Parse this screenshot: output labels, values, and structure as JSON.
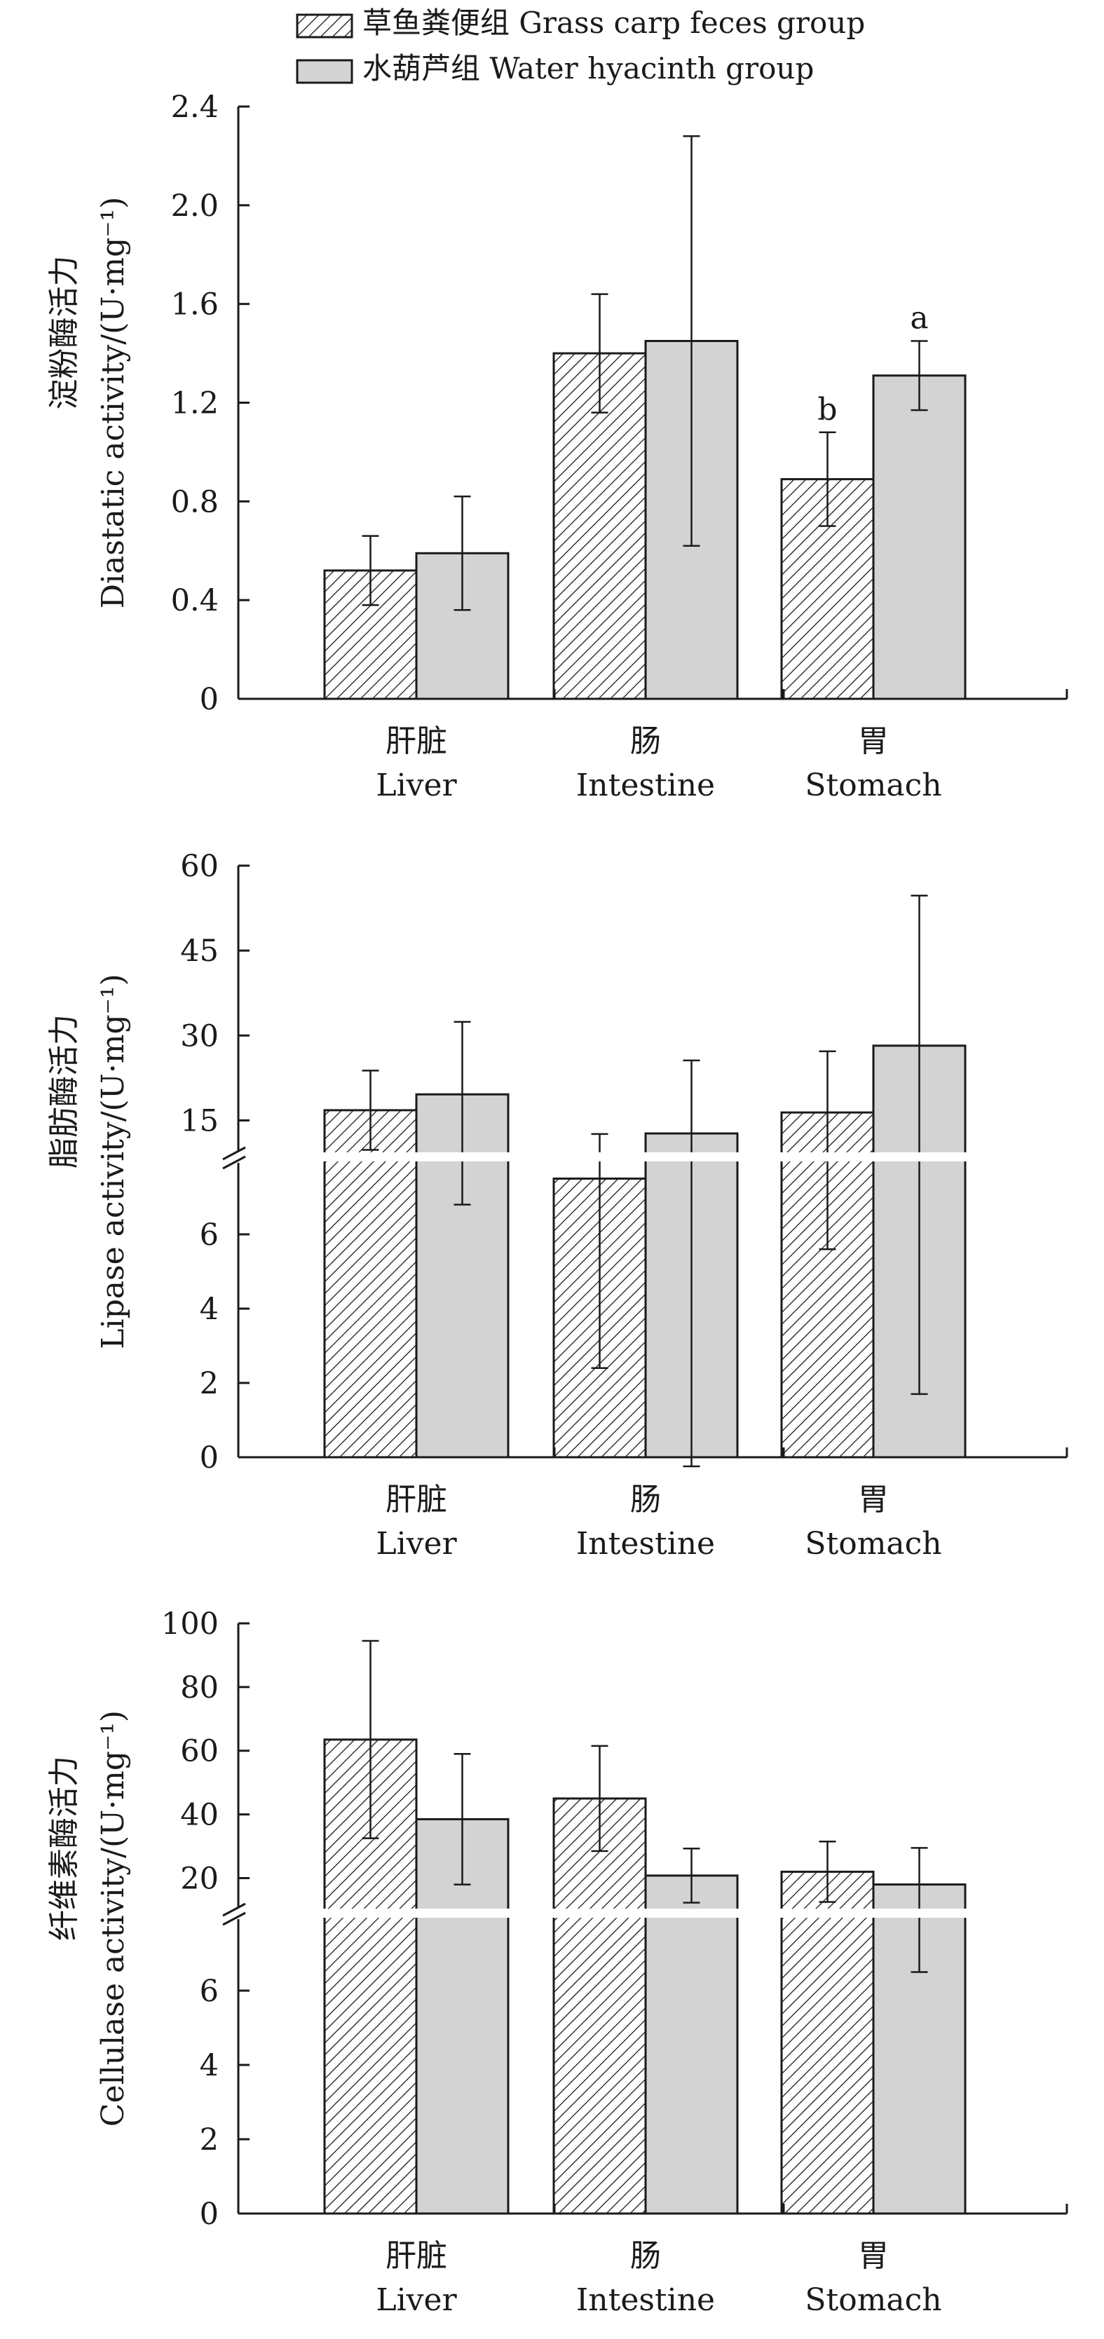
{
  "legend": {
    "series": [
      {
        "label": "草鱼粪便组 Grass carp feces group",
        "fill": "hatch"
      },
      {
        "label": "水葫芦组 Water hyacinth group",
        "fill": "#d3d3d3"
      }
    ]
  },
  "colors": {
    "gray_bar": "#d3d3d3",
    "axis": "#1a1a1a",
    "hatch_line": "#1a1a1a"
  },
  "chart_data": [
    {
      "type": "bar",
      "ylabel_cn": "淀粉酶活力",
      "ylabel_en": "Diastatic activity/(U·mg⁻¹)",
      "categories": [
        {
          "cn": "肝脏",
          "en": "Liver"
        },
        {
          "cn": "肠",
          "en": "Intestine"
        },
        {
          "cn": "胃",
          "en": "Stomach"
        }
      ],
      "ylim": [
        0,
        2.4
      ],
      "yticks": [
        0,
        0.4,
        0.8,
        1.2,
        1.6,
        2.0,
        2.4
      ],
      "ytick_labels": [
        "0",
        "0.4",
        "0.8",
        "1.2",
        "1.6",
        "2.0",
        "2.4"
      ],
      "axis_break": null,
      "series": [
        {
          "name": "草鱼粪便组 Grass carp feces group",
          "values": [
            0.52,
            1.4,
            0.89
          ],
          "errors": [
            0.14,
            0.24,
            0.19
          ],
          "labels": [
            "",
            "",
            "b"
          ]
        },
        {
          "name": "水葫芦组 Water hyacinth group",
          "values": [
            0.59,
            1.45,
            1.31
          ],
          "errors": [
            0.23,
            0.83,
            0.14
          ],
          "labels": [
            "",
            "",
            "a"
          ]
        }
      ]
    },
    {
      "type": "bar",
      "ylabel_cn": "脂肪酶活力",
      "ylabel_en": "Lipase activity/(U·mg⁻¹)",
      "categories": [
        {
          "cn": "肝脏",
          "en": "Liver"
        },
        {
          "cn": "肠",
          "en": "Intestine"
        },
        {
          "cn": "胃",
          "en": "Stomach"
        }
      ],
      "ylim": [
        0,
        60
      ],
      "yticks": [
        0,
        2,
        4,
        6,
        15,
        30,
        45,
        60
      ],
      "ytick_labels": [
        "0",
        "2",
        "4",
        "6",
        "15",
        "30",
        "45",
        "60"
      ],
      "axis_break": {
        "lower": [
          0,
          8
        ],
        "upper": [
          8,
          60
        ]
      },
      "series": [
        {
          "name": "草鱼粪便组 Grass carp feces group",
          "values": [
            16.8,
            7.5,
            16.4
          ],
          "errors": [
            7.0,
            5.1,
            10.8
          ],
          "labels": [
            "",
            "",
            ""
          ]
        },
        {
          "name": "水葫芦组 Water hyacinth group",
          "values": [
            19.6,
            12.7,
            28.2
          ],
          "errors": [
            12.8,
            12.9,
            26.5
          ],
          "labels": [
            "",
            "",
            ""
          ]
        }
      ]
    },
    {
      "type": "bar",
      "ylabel_cn": "纤维素酶活力",
      "ylabel_en": "Cellulase activity/(U·mg⁻¹)",
      "categories": [
        {
          "cn": "肝脏",
          "en": "Liver"
        },
        {
          "cn": "肠",
          "en": "Intestine"
        },
        {
          "cn": "胃",
          "en": "Stomach"
        }
      ],
      "ylim": [
        0,
        100
      ],
      "yticks": [
        0,
        2,
        4,
        6,
        20,
        40,
        60,
        80,
        100
      ],
      "ytick_labels": [
        "0",
        "2",
        "4",
        "6",
        "20",
        "40",
        "60",
        "80",
        "100"
      ],
      "axis_break": {
        "lower": [
          0,
          8
        ],
        "upper": [
          8,
          100
        ]
      },
      "series": [
        {
          "name": "草鱼粪便组 Grass carp feces group",
          "values": [
            63.5,
            45.0,
            22.0
          ],
          "errors": [
            31.0,
            16.5,
            9.5
          ],
          "labels": [
            "",
            "",
            ""
          ]
        },
        {
          "name": "水葫芦组 Water hyacinth group",
          "values": [
            38.5,
            20.8,
            18.0
          ],
          "errors": [
            20.5,
            8.5,
            11.5
          ],
          "labels": [
            "",
            "",
            ""
          ]
        }
      ]
    }
  ]
}
